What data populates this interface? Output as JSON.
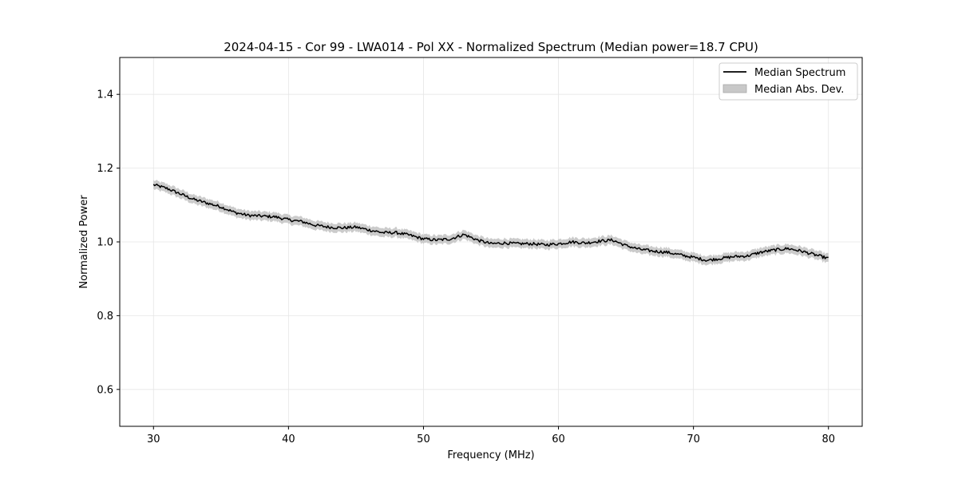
{
  "chart_data": {
    "type": "line",
    "title": "2024-04-15 - Cor 99 - LWA014 - Pol XX - Normalized Spectrum (Median power=18.7 CPU)",
    "xlabel": "Frequency (MHz)",
    "ylabel": "Normalized Power",
    "xlim": [
      27.5,
      82.5
    ],
    "ylim": [
      0.5,
      1.5
    ],
    "xticks": [
      30,
      40,
      50,
      60,
      70,
      80
    ],
    "yticks": [
      0.6,
      0.8,
      1.0,
      1.2,
      1.4
    ],
    "xtick_labels": [
      "30",
      "40",
      "50",
      "60",
      "70",
      "80"
    ],
    "ytick_labels": [
      "0.6",
      "0.8",
      "1.0",
      "1.2",
      "1.4"
    ],
    "grid": true,
    "legend_position": "top-right",
    "series": [
      {
        "name": "Median Spectrum",
        "color": "#000000",
        "x": [
          30,
          31,
          32,
          33,
          34,
          35,
          36,
          37,
          38,
          39,
          40,
          41,
          42,
          43,
          44,
          45,
          46,
          47,
          48,
          49,
          50,
          51,
          52,
          53,
          54,
          55,
          56,
          57,
          58,
          59,
          60,
          61,
          62,
          63,
          64,
          65,
          66,
          67,
          68,
          69,
          70,
          71,
          72,
          73,
          74,
          75,
          76,
          77,
          78,
          79,
          80
        ],
        "y": [
          1.155,
          1.145,
          1.13,
          1.115,
          1.105,
          1.095,
          1.08,
          1.072,
          1.07,
          1.068,
          1.06,
          1.055,
          1.045,
          1.04,
          1.038,
          1.04,
          1.032,
          1.025,
          1.025,
          1.018,
          1.008,
          1.005,
          1.008,
          1.02,
          1.005,
          0.995,
          0.997,
          0.995,
          0.995,
          0.992,
          0.995,
          1.0,
          0.997,
          1.002,
          1.005,
          0.99,
          0.98,
          0.975,
          0.972,
          0.965,
          0.958,
          0.95,
          0.955,
          0.96,
          0.962,
          0.972,
          0.978,
          0.982,
          0.975,
          0.965,
          0.955
        ]
      },
      {
        "name": "Median Abs. Dev.",
        "color": "#c8c8c8",
        "type": "band",
        "half_width": 0.012
      }
    ]
  }
}
